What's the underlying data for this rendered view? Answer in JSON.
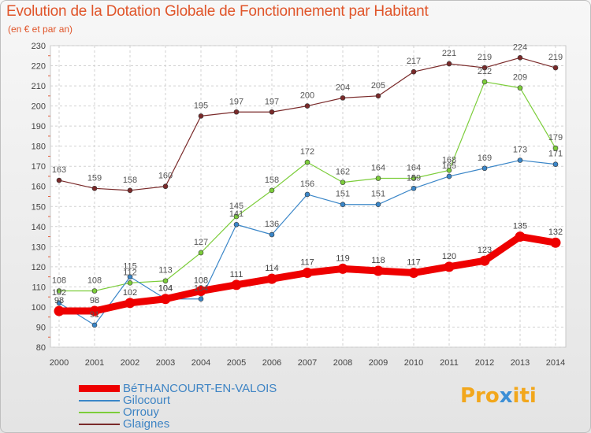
{
  "header": {
    "title": "Evolution de la Dotation Globale de Fonctionnement par Habitant",
    "subtitle": "(en € et par an)"
  },
  "logo": {
    "part1": "Pro",
    "part2": "x",
    "part3": "iti"
  },
  "colors": {
    "BéTHANCOURT-EN-VALOIS": "#ee0000",
    "Gilocourt": "#3a86c8",
    "Orrouy": "#7ccd3a",
    "Glaignes": "#7a2a2a"
  },
  "chart_data": {
    "type": "line",
    "title": "Evolution de la Dotation Globale de Fonctionnement par Habitant",
    "subtitle": "(en € et par an)",
    "xlabel": "",
    "ylabel": "",
    "x": [
      2000,
      2001,
      2002,
      2003,
      2004,
      2005,
      2006,
      2007,
      2008,
      2009,
      2010,
      2011,
      2012,
      2013,
      2014
    ],
    "ylim": [
      80,
      230
    ],
    "yticks": [
      80,
      90,
      100,
      110,
      120,
      130,
      140,
      150,
      160,
      170,
      180,
      190,
      200,
      210,
      220,
      230
    ],
    "grid": true,
    "legend_position": "bottom-left",
    "series": [
      {
        "name": "BéTHANCOURT-EN-VALOIS",
        "values": [
          98,
          98,
          102,
          104,
          108,
          111,
          114,
          117,
          119,
          118,
          117,
          120,
          123,
          135,
          132
        ]
      },
      {
        "name": "Gilocourt",
        "values": [
          102,
          91,
          115,
          104,
          104,
          141,
          136,
          156,
          151,
          151,
          159,
          165,
          169,
          173,
          171
        ]
      },
      {
        "name": "Orrouy",
        "values": [
          108,
          108,
          112,
          113,
          127,
          145,
          158,
          172,
          162,
          164,
          164,
          168,
          212,
          209,
          179
        ]
      },
      {
        "name": "Glaignes",
        "values": [
          163,
          159,
          158,
          160,
          195,
          197,
          197,
          200,
          204,
          205,
          217,
          221,
          219,
          224,
          219
        ]
      }
    ]
  }
}
